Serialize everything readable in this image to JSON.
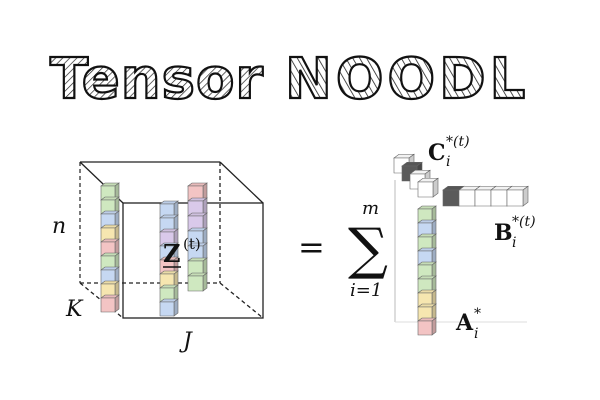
{
  "logo": {
    "word1": "Tensor",
    "word2": "NOODL"
  },
  "equation": {
    "dim_n": "n",
    "dim_k": "K",
    "dim_j": "J",
    "z_letter": "Z",
    "z_sup": "(t)",
    "equals": "=",
    "sum_upper": "m",
    "sum_lower": "i=1",
    "c_letter": "C",
    "c_sup": "*(t)",
    "c_sub": "i",
    "b_letter": "B",
    "b_sup": "*(t)",
    "b_sub": "i",
    "a_letter": "A",
    "a_sup": "*",
    "a_sub": "i"
  },
  "colors": {
    "green": "#cfe8c0",
    "blue": "#c6d8f2",
    "pink": "#f3c4c4",
    "purple": "#d9c9ea",
    "yellow": "#f6e6b0",
    "dark_cell": "#5a5a5a"
  }
}
